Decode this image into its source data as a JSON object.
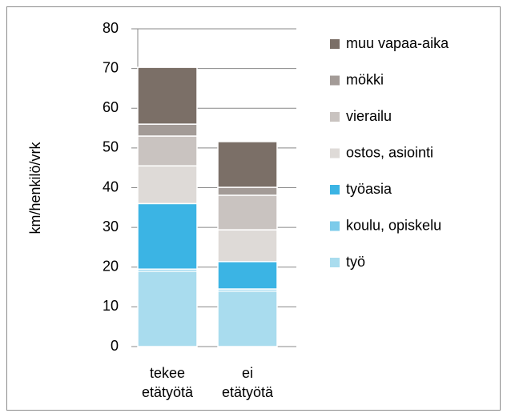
{
  "chart_data": {
    "type": "stacked_bar",
    "ylabel": "km/henkilö/vrk",
    "categories": [
      "tekee etätyötä",
      "ei etätyötä"
    ],
    "series": [
      {
        "name": "työ",
        "color": "#a9dcee",
        "values": [
          19,
          14
        ]
      },
      {
        "name": "koulu, opiskelu",
        "color": "#7ccbea",
        "values": [
          0.5,
          0.5
        ]
      },
      {
        "name": "työasia",
        "color": "#3bb4e4",
        "values": [
          16.5,
          6.9
        ]
      },
      {
        "name": "ostos, asiointi",
        "color": "#dedad7",
        "values": [
          9.5,
          8
        ]
      },
      {
        "name": "vierailu",
        "color": "#c9c3c0",
        "values": [
          7.5,
          8.7
        ]
      },
      {
        "name": "mökki",
        "color": "#a39b97",
        "values": [
          3,
          2
        ]
      },
      {
        "name": "muu vapaa-aika",
        "color": "#7b6f67",
        "values": [
          14.3,
          11.5
        ]
      }
    ],
    "ylim": [
      0,
      80
    ],
    "yticks": [
      0,
      10,
      20,
      30,
      40,
      50,
      60,
      70,
      80
    ],
    "grid": true,
    "legend": "right"
  }
}
